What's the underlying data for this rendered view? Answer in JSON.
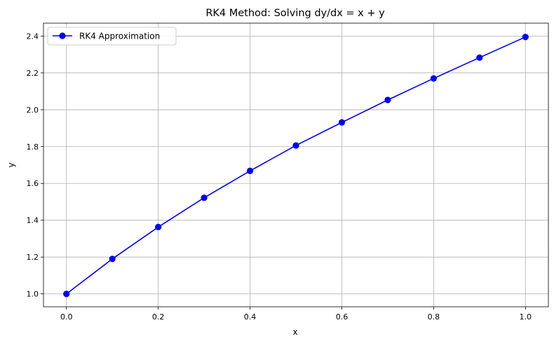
{
  "chart_data": {
    "type": "line",
    "title": "RK4 Method: Solving dy/dx = x + y",
    "xlabel": "x",
    "ylabel": "y",
    "xlim": [
      -0.05,
      1.05
    ],
    "ylim": [
      0.93,
      2.47
    ],
    "xticks": [
      "0.0",
      "0.2",
      "0.4",
      "0.6",
      "0.8",
      "1.0"
    ],
    "yticks": [
      "1.0",
      "1.2",
      "1.4",
      "1.6",
      "1.8",
      "2.0",
      "2.2",
      "2.4"
    ],
    "grid": true,
    "legend_position": "top-left",
    "series": [
      {
        "name": "RK4 Approximation",
        "color": "#0000ff",
        "marker": "circle",
        "x": [
          0.0,
          0.1,
          0.2,
          0.3,
          0.4,
          0.5,
          0.6,
          0.7,
          0.8,
          0.9,
          1.0
        ],
        "y": [
          1.0,
          1.19,
          1.363,
          1.522,
          1.668,
          1.806,
          1.931,
          2.053,
          2.17,
          2.283,
          2.395
        ]
      }
    ]
  }
}
